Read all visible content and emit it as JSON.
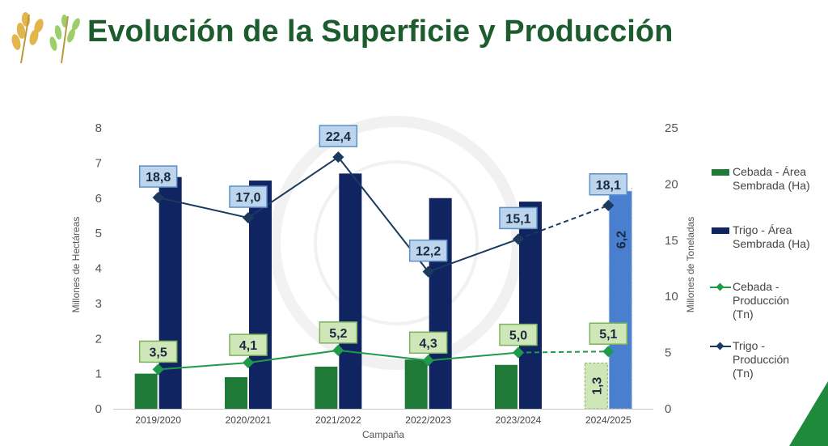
{
  "title": "Evolución de la Superficie y Producción",
  "colors": {
    "cebada": "#1e7a36",
    "trigo": "#0f2460",
    "cebada_label_bg": "#cfe6b8",
    "trigo_label_bg": "#bcd4ec",
    "estimate_bar": "#4a7fcf"
  },
  "chart_data": {
    "type": "bar",
    "categories": [
      "2019/2020",
      "2020/2021",
      "2021/2022",
      "2022/2023",
      "2023/2024",
      "2024/2025"
    ],
    "xlabel": "Campaña",
    "ylabel": "Millones de Hectáreas",
    "ylabel_right": "Millones de Toneladas",
    "ylim": [
      0,
      8
    ],
    "ylim_right": [
      0,
      25
    ],
    "yticks": [
      "0",
      "1",
      "2",
      "3",
      "4",
      "5",
      "6",
      "7",
      "8"
    ],
    "yticks_right": [
      "0",
      "5",
      "10",
      "15",
      "20",
      "25"
    ],
    "series": [
      {
        "name": "Cebada - Área Sembrada (Ha)",
        "type": "bar",
        "axis": "left",
        "values": [
          1.0,
          0.9,
          1.2,
          1.4,
          1.25,
          1.3
        ]
      },
      {
        "name": "Trigo - Área Sembrada (Ha)",
        "type": "bar",
        "axis": "left",
        "values": [
          6.6,
          6.5,
          6.7,
          6.0,
          5.9,
          6.2
        ]
      },
      {
        "name": "Cebada - Producción (Tn)",
        "type": "line",
        "axis": "right",
        "values": [
          3.5,
          4.1,
          5.2,
          4.3,
          5.0,
          5.1
        ],
        "labels": [
          "3,5",
          "4,1",
          "5,2",
          "4,3",
          "5,0",
          "5,1"
        ]
      },
      {
        "name": "Trigo - Producción (Tn)",
        "type": "line",
        "axis": "right",
        "values": [
          18.8,
          17.0,
          22.4,
          12.2,
          15.1,
          18.1
        ],
        "labels": [
          "18,8",
          "17,0",
          "22,4",
          "12,2",
          "15,1",
          "18,1"
        ]
      }
    ],
    "estimate_labels": {
      "cebada_area": "1,3",
      "trigo_area": "6,2"
    },
    "legend": "right",
    "grid": false
  }
}
